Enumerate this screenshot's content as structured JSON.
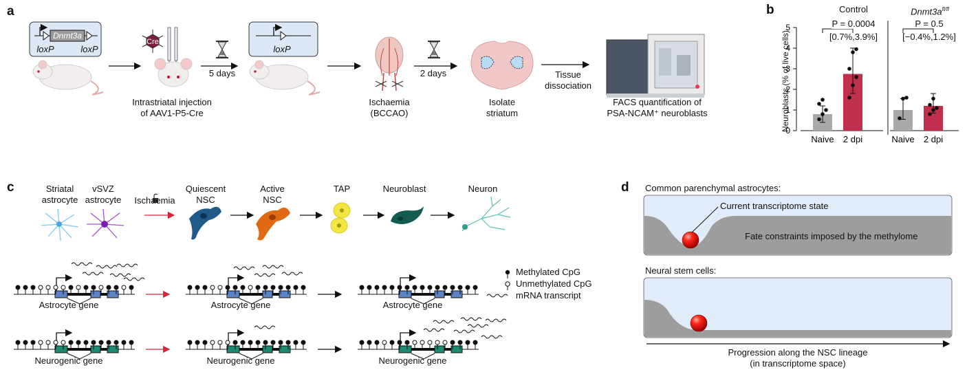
{
  "panels": {
    "a": "a",
    "b": "b",
    "c": "c",
    "d": "d"
  },
  "panel_a": {
    "construct1": {
      "gene": "Dnmt3a",
      "lox_left": "loxP",
      "lox_right": "loxP"
    },
    "construct2": {
      "lox": "loxP"
    },
    "cre_label": "Cre",
    "injection_label": [
      "Intrastriatal injection",
      "of AAV1-P5-Cre"
    ],
    "wait1": "5 days",
    "ischaemia_label": [
      "Ischaemia",
      "(BCCAO)"
    ],
    "wait2": "2 days",
    "isolate_label": [
      "Isolate",
      "striatum"
    ],
    "dissociation_label": [
      "Tissue",
      "dissociation"
    ],
    "facs_label": [
      "FACS quantification of",
      "PSA-NCAM⁺ neuroblasts"
    ]
  },
  "panel_b": {
    "ylabel": "Neuroblasts (% of live cells)",
    "yticks": [
      "0",
      "1",
      "2",
      "3",
      "4",
      "5"
    ],
    "groups": [
      {
        "title": "Control",
        "p_text": "P = 0.0004",
        "ci_text": "[0.7%,3.9%]"
      },
      {
        "title": "Dnmt3a",
        "title_sup": "fl/fl",
        "p_text": "P = 0.5",
        "ci_text": "[−0.4%,1.2%]"
      }
    ]
  },
  "chart_data": {
    "type": "bar",
    "ylabel": "Neuroblasts (% of live cells)",
    "ylim": [
      0,
      5
    ],
    "groups": [
      {
        "title": "Control",
        "categories": [
          "Naive",
          "2 dpi"
        ],
        "values": [
          0.8,
          2.75
        ],
        "errors": [
          [
            0.4,
            1.2
          ],
          [
            1.8,
            4.0
          ]
        ],
        "points": [
          [
            0.55,
            0.8,
            1.0,
            1.3,
            1.5
          ],
          [
            1.6,
            2.2,
            2.6,
            3.0,
            3.8,
            3.95
          ]
        ],
        "colors": [
          "#a9a9a9",
          "#c0304d"
        ]
      },
      {
        "title": "Dnmt3a fl/fl",
        "categories": [
          "Naive",
          "2 dpi"
        ],
        "values": [
          1.0,
          1.2
        ],
        "errors": [
          [
            0.55,
            1.55
          ],
          [
            0.85,
            1.8
          ]
        ],
        "points": [
          [
            0.6,
            1.55,
            1.6
          ],
          [
            0.8,
            1.0,
            1.1,
            1.25,
            1.55
          ]
        ],
        "colors": [
          "#a9a9a9",
          "#c0304d"
        ]
      }
    ]
  },
  "panel_c": {
    "cells": [
      {
        "label": [
          "Striatal",
          "astrocyte"
        ]
      },
      {
        "label": [
          "vSVZ",
          "astrocyte"
        ]
      },
      {
        "label": [
          "Quiescent",
          "NSC"
        ]
      },
      {
        "label": [
          "Active",
          "NSC"
        ]
      },
      {
        "label": [
          "TAP"
        ]
      },
      {
        "label": [
          "Neuroblast"
        ]
      },
      {
        "label": [
          "Neuron"
        ]
      }
    ],
    "ischaemia": "Ischaemia",
    "legend": {
      "methylated": "Methylated CpG",
      "unmethylated": "Unmethylated CpG",
      "mrna": "mRNA transcript"
    },
    "astro_gene": "Astrocyte gene",
    "neuro_gene": "Neurogenic gene"
  },
  "panel_d": {
    "top_title": "Common parenchymal astrocytes:",
    "current_state": "Current transcriptome state",
    "fate": "Fate constraints imposed by the methylome",
    "bottom_title": "Neural stem cells:",
    "axis_label": [
      "Progression along the NSC lineage",
      "(in transcriptome space)"
    ]
  }
}
